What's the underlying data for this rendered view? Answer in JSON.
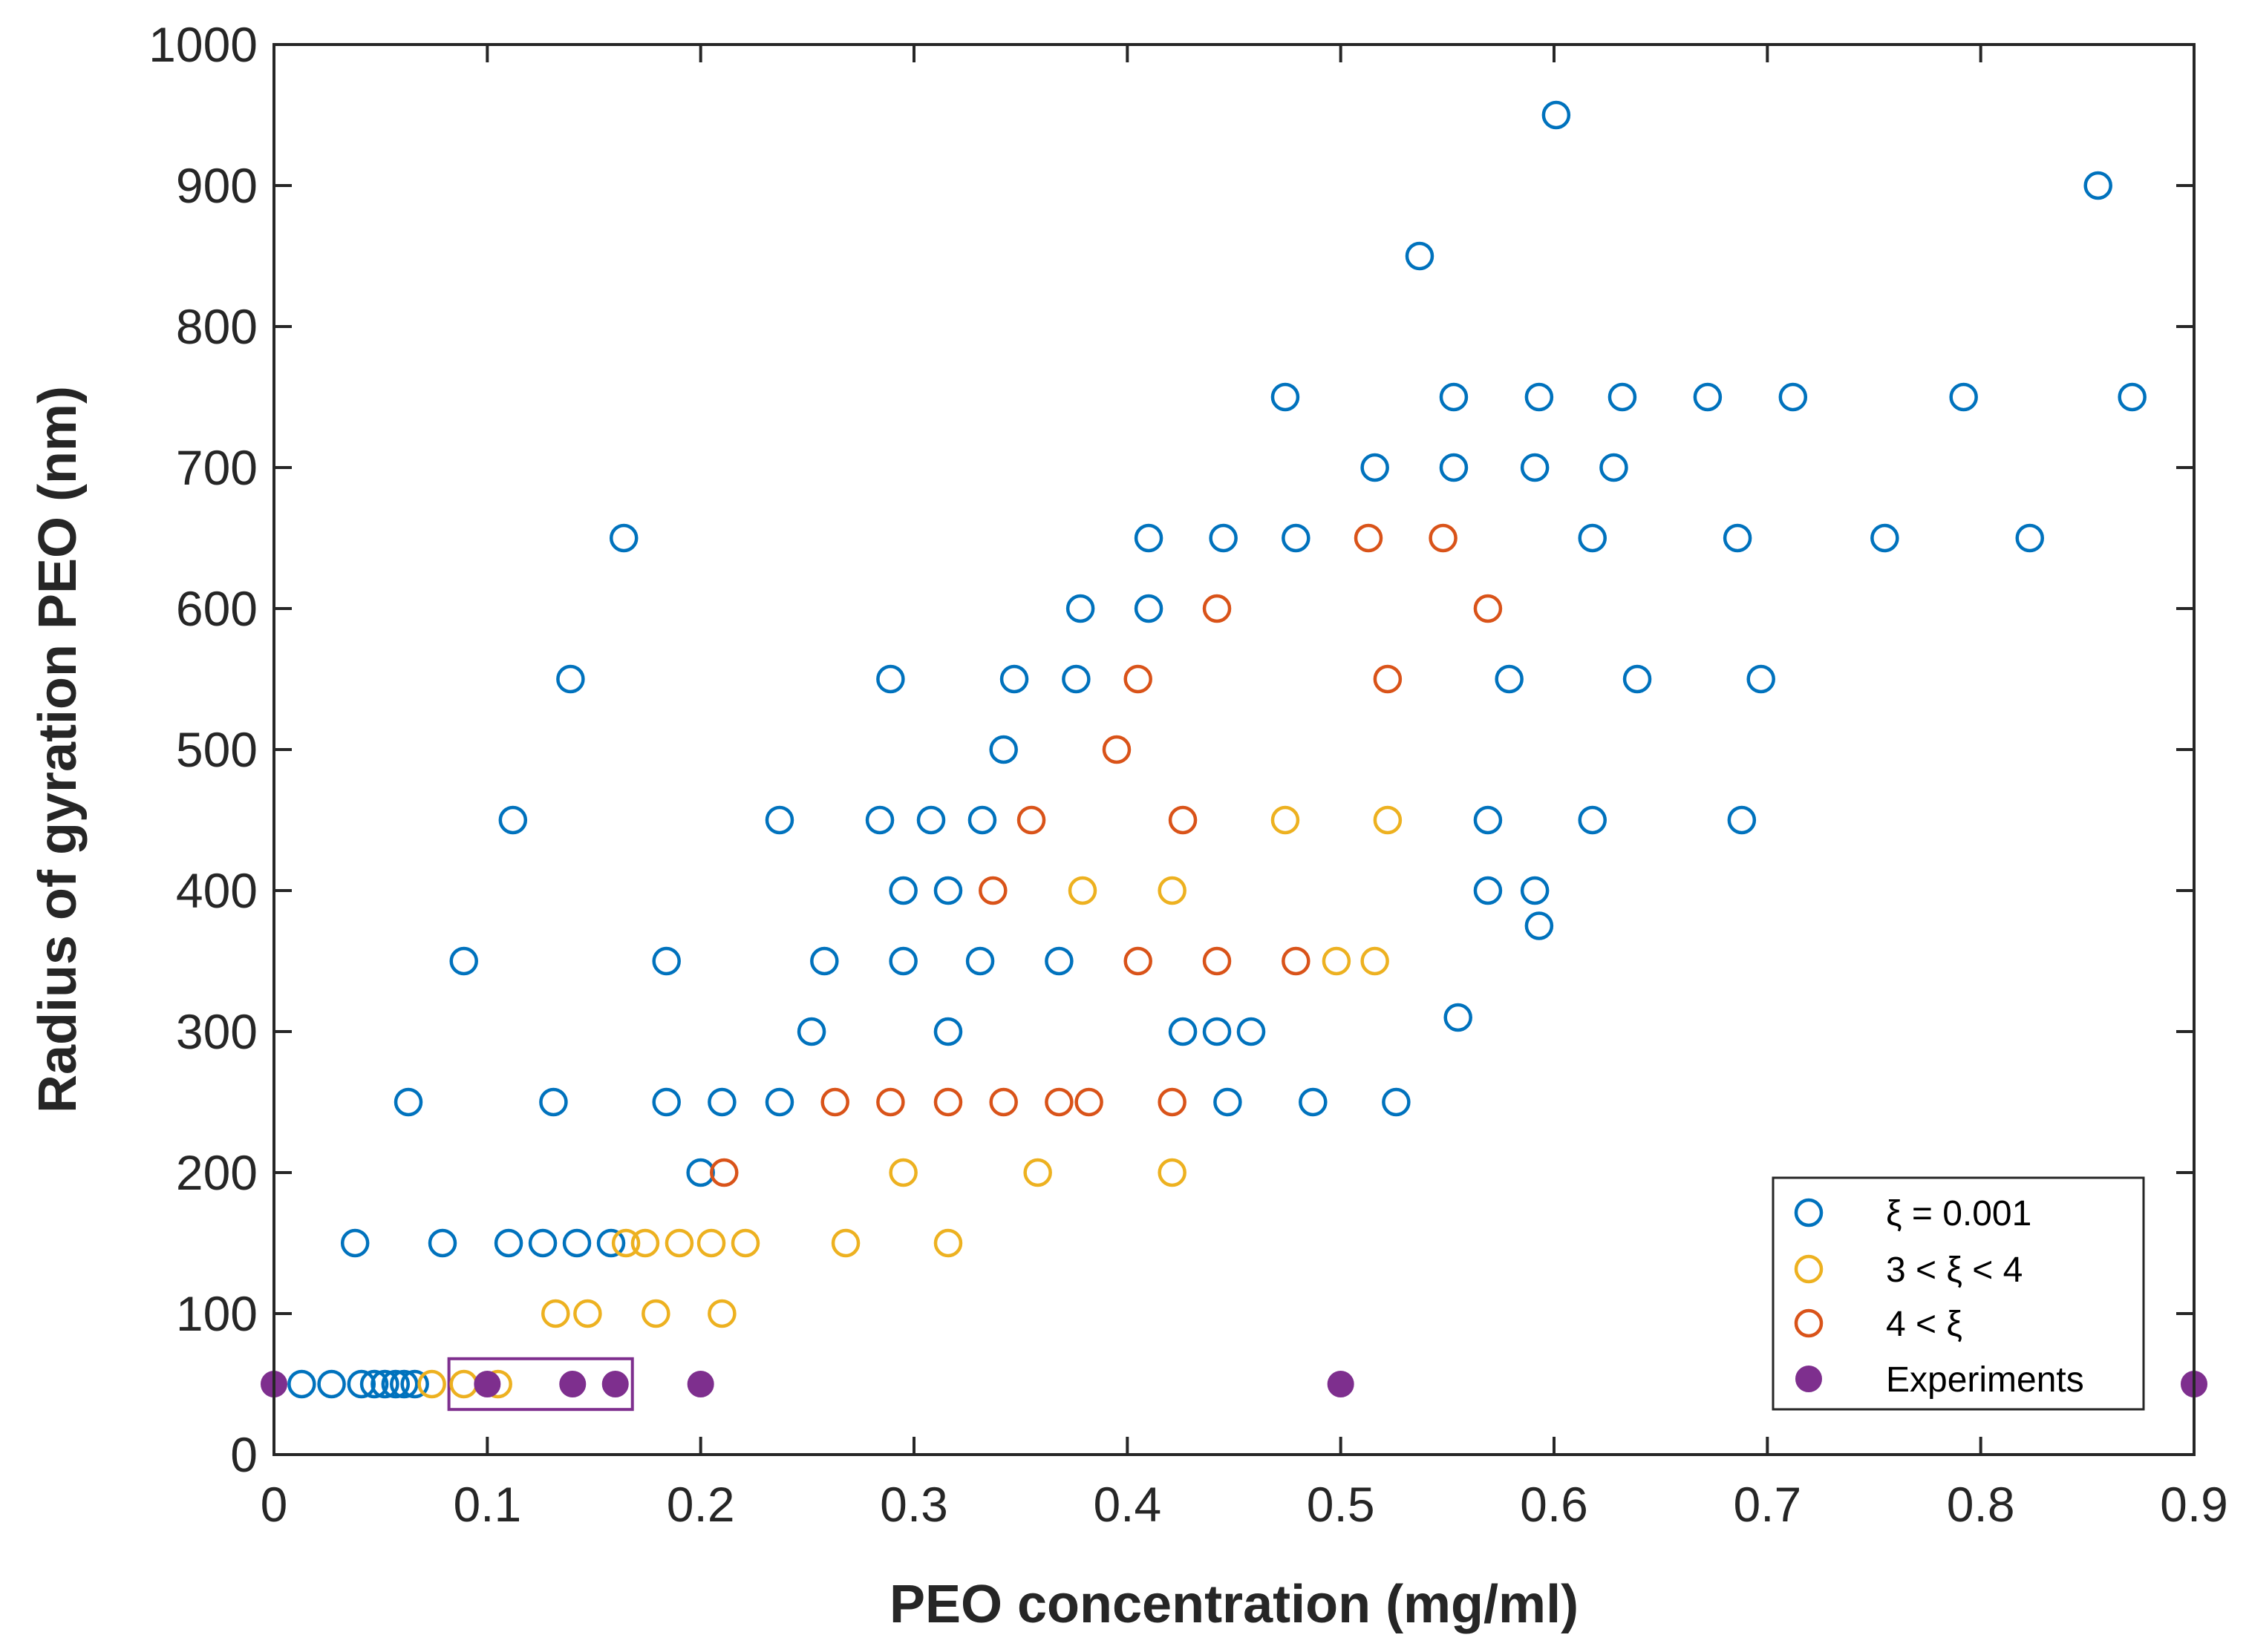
{
  "chart_data": {
    "type": "scatter",
    "title": "",
    "xlabel": "PEO concentration (mg/ml)",
    "ylabel": "Radius of gyration PEO (nm)",
    "xlim": [
      0,
      0.9
    ],
    "ylim": [
      0,
      1000
    ],
    "xticks": [
      0,
      0.1,
      0.2,
      0.3,
      0.4,
      0.5,
      0.6,
      0.7,
      0.8,
      0.9
    ],
    "xtick_labels": [
      "0",
      "0.1",
      "0.2",
      "0.3",
      "0.4",
      "0.5",
      "0.6",
      "0.7",
      "0.8",
      "0.9"
    ],
    "yticks": [
      0,
      100,
      200,
      300,
      400,
      500,
      600,
      700,
      800,
      900,
      1000
    ],
    "ytick_labels": [
      "0",
      "100",
      "200",
      "300",
      "400",
      "500",
      "600",
      "700",
      "800",
      "900",
      "1000"
    ],
    "grid": false,
    "legend_position": "bottom-right",
    "highlight_box": {
      "x_range": [
        0.082,
        0.168
      ],
      "y_range": [
        32,
        68
      ],
      "color": "#7E2F8E"
    },
    "series": [
      {
        "name": "ξ = 0.001",
        "legend_label": "ξ = 0.001",
        "color": "#0072BD",
        "marker": "open-circle",
        "points": [
          [
            0.013,
            50
          ],
          [
            0.027,
            50
          ],
          [
            0.041,
            50
          ],
          [
            0.047,
            50
          ],
          [
            0.052,
            50
          ],
          [
            0.057,
            50
          ],
          [
            0.061,
            50
          ],
          [
            0.066,
            50
          ],
          [
            0.038,
            150
          ],
          [
            0.079,
            150
          ],
          [
            0.11,
            150
          ],
          [
            0.126,
            150
          ],
          [
            0.142,
            150
          ],
          [
            0.158,
            150
          ],
          [
            0.063,
            250
          ],
          [
            0.131,
            250
          ],
          [
            0.184,
            250
          ],
          [
            0.21,
            250
          ],
          [
            0.237,
            250
          ],
          [
            0.447,
            250
          ],
          [
            0.487,
            250
          ],
          [
            0.526,
            250
          ],
          [
            0.2,
            200
          ],
          [
            0.252,
            300
          ],
          [
            0.316,
            300
          ],
          [
            0.426,
            300
          ],
          [
            0.442,
            300
          ],
          [
            0.458,
            300
          ],
          [
            0.555,
            310
          ],
          [
            0.089,
            350
          ],
          [
            0.184,
            350
          ],
          [
            0.258,
            350
          ],
          [
            0.295,
            350
          ],
          [
            0.331,
            350
          ],
          [
            0.368,
            350
          ],
          [
            0.295,
            400
          ],
          [
            0.316,
            400
          ],
          [
            0.569,
            400
          ],
          [
            0.591,
            400
          ],
          [
            0.593,
            375
          ],
          [
            0.112,
            450
          ],
          [
            0.237,
            450
          ],
          [
            0.284,
            450
          ],
          [
            0.308,
            450
          ],
          [
            0.332,
            450
          ],
          [
            0.569,
            450
          ],
          [
            0.618,
            450
          ],
          [
            0.688,
            450
          ],
          [
            0.342,
            500
          ],
          [
            0.139,
            550
          ],
          [
            0.289,
            550
          ],
          [
            0.347,
            550
          ],
          [
            0.376,
            550
          ],
          [
            0.579,
            550
          ],
          [
            0.639,
            550
          ],
          [
            0.697,
            550
          ],
          [
            0.378,
            600
          ],
          [
            0.41,
            600
          ],
          [
            0.164,
            650
          ],
          [
            0.41,
            650
          ],
          [
            0.445,
            650
          ],
          [
            0.479,
            650
          ],
          [
            0.618,
            650
          ],
          [
            0.686,
            650
          ],
          [
            0.755,
            650
          ],
          [
            0.823,
            650
          ],
          [
            0.516,
            700
          ],
          [
            0.553,
            700
          ],
          [
            0.591,
            700
          ],
          [
            0.628,
            700
          ],
          [
            0.474,
            750
          ],
          [
            0.553,
            750
          ],
          [
            0.593,
            750
          ],
          [
            0.632,
            750
          ],
          [
            0.672,
            750
          ],
          [
            0.712,
            750
          ],
          [
            0.792,
            750
          ],
          [
            0.871,
            750
          ],
          [
            0.537,
            850
          ],
          [
            0.855,
            900
          ],
          [
            0.601,
            950
          ]
        ]
      },
      {
        "name": "3 < ξ < 4",
        "legend_label": "3 < ξ < 4",
        "color": "#EDB120",
        "marker": "open-circle",
        "points": [
          [
            0.074,
            50
          ],
          [
            0.089,
            50
          ],
          [
            0.105,
            50
          ],
          [
            0.132,
            100
          ],
          [
            0.147,
            100
          ],
          [
            0.179,
            100
          ],
          [
            0.21,
            100
          ],
          [
            0.165,
            150
          ],
          [
            0.174,
            150
          ],
          [
            0.19,
            150
          ],
          [
            0.205,
            150
          ],
          [
            0.221,
            150
          ],
          [
            0.268,
            150
          ],
          [
            0.316,
            150
          ],
          [
            0.295,
            200
          ],
          [
            0.358,
            200
          ],
          [
            0.421,
            200
          ],
          [
            0.498,
            350
          ],
          [
            0.516,
            350
          ],
          [
            0.379,
            400
          ],
          [
            0.421,
            400
          ],
          [
            0.474,
            450
          ],
          [
            0.522,
            450
          ]
        ]
      },
      {
        "name": "4 < ξ",
        "legend_label": "4 < ξ",
        "color": "#D95319",
        "marker": "open-circle",
        "points": [
          [
            0.211,
            200
          ],
          [
            0.263,
            250
          ],
          [
            0.289,
            250
          ],
          [
            0.316,
            250
          ],
          [
            0.342,
            250
          ],
          [
            0.368,
            250
          ],
          [
            0.382,
            250
          ],
          [
            0.421,
            250
          ],
          [
            0.405,
            350
          ],
          [
            0.442,
            350
          ],
          [
            0.479,
            350
          ],
          [
            0.337,
            400
          ],
          [
            0.355,
            450
          ],
          [
            0.426,
            450
          ],
          [
            0.395,
            500
          ],
          [
            0.405,
            550
          ],
          [
            0.522,
            550
          ],
          [
            0.442,
            600
          ],
          [
            0.569,
            600
          ],
          [
            0.513,
            650
          ],
          [
            0.548,
            650
          ]
        ]
      },
      {
        "name": "Experiments",
        "legend_label": "Experiments",
        "color": "#7E2F8E",
        "marker": "filled-circle",
        "points": [
          [
            0.0,
            50
          ],
          [
            0.1,
            50
          ],
          [
            0.14,
            50
          ],
          [
            0.16,
            50
          ],
          [
            0.2,
            50
          ],
          [
            0.5,
            50
          ],
          [
            0.9,
            50
          ]
        ]
      }
    ]
  }
}
